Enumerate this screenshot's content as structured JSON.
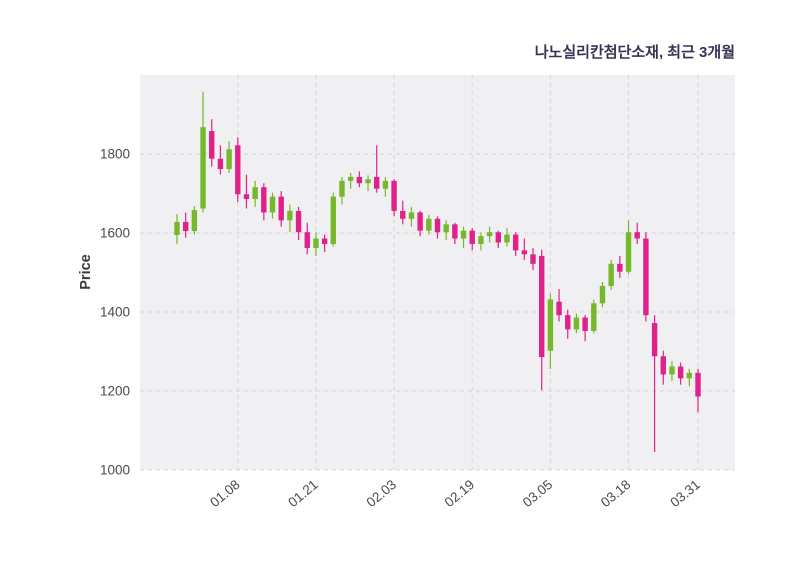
{
  "chart_data": {
    "type": "candlestick",
    "title": "나노실리칸첨단소재, 최근 3개월",
    "ylabel": "Price",
    "xlabel": "",
    "ylim": [
      1000,
      2000
    ],
    "y_ticks": [
      1000,
      1200,
      1400,
      1600,
      1800
    ],
    "x_ticks": [
      {
        "index": 7,
        "label": "01.08"
      },
      {
        "index": 16,
        "label": "01.21"
      },
      {
        "index": 25,
        "label": "02.03"
      },
      {
        "index": 34,
        "label": "02.19"
      },
      {
        "index": 43,
        "label": "03.05"
      },
      {
        "index": 52,
        "label": "03.18"
      },
      {
        "index": 60,
        "label": "03.31"
      }
    ],
    "grid": {
      "on": true,
      "style": "dashed"
    },
    "legend": "none",
    "colors": {
      "up": "#76B82A",
      "down": "#E0218A",
      "plot_bg": "#F0F0F2",
      "grid": "#D6D6DA",
      "title": "#343454",
      "tick": "#4A4A4A",
      "ylabel": "#3A3A3A",
      "figure_bg": "#FFFFFF"
    },
    "candles_format": [
      "open",
      "high",
      "low",
      "close"
    ],
    "candles": [
      [
        1595,
        1648,
        1572,
        1628
      ],
      [
        1628,
        1652,
        1588,
        1605
      ],
      [
        1605,
        1668,
        1596,
        1658
      ],
      [
        1662,
        1958,
        1652,
        1868
      ],
      [
        1858,
        1888,
        1768,
        1788
      ],
      [
        1788,
        1822,
        1748,
        1762
      ],
      [
        1762,
        1832,
        1752,
        1812
      ],
      [
        1822,
        1842,
        1678,
        1698
      ],
      [
        1698,
        1748,
        1662,
        1686
      ],
      [
        1686,
        1732,
        1666,
        1716
      ],
      [
        1716,
        1726,
        1632,
        1652
      ],
      [
        1652,
        1702,
        1636,
        1692
      ],
      [
        1692,
        1706,
        1616,
        1632
      ],
      [
        1632,
        1672,
        1602,
        1656
      ],
      [
        1656,
        1666,
        1582,
        1602
      ],
      [
        1602,
        1626,
        1546,
        1562
      ],
      [
        1562,
        1602,
        1542,
        1586
      ],
      [
        1586,
        1596,
        1552,
        1572
      ],
      [
        1572,
        1702,
        1566,
        1692
      ],
      [
        1692,
        1742,
        1672,
        1732
      ],
      [
        1732,
        1752,
        1712,
        1742
      ],
      [
        1742,
        1756,
        1716,
        1726
      ],
      [
        1726,
        1746,
        1706,
        1736
      ],
      [
        1742,
        1822,
        1702,
        1712
      ],
      [
        1712,
        1742,
        1692,
        1732
      ],
      [
        1732,
        1736,
        1642,
        1656
      ],
      [
        1656,
        1682,
        1622,
        1636
      ],
      [
        1636,
        1666,
        1616,
        1652
      ],
      [
        1652,
        1656,
        1592,
        1606
      ],
      [
        1606,
        1646,
        1596,
        1636
      ],
      [
        1636,
        1642,
        1586,
        1602
      ],
      [
        1602,
        1632,
        1582,
        1622
      ],
      [
        1622,
        1626,
        1572,
        1586
      ],
      [
        1586,
        1616,
        1562,
        1606
      ],
      [
        1606,
        1612,
        1556,
        1572
      ],
      [
        1572,
        1602,
        1556,
        1592
      ],
      [
        1592,
        1616,
        1576,
        1602
      ],
      [
        1602,
        1606,
        1562,
        1576
      ],
      [
        1576,
        1612,
        1566,
        1596
      ],
      [
        1596,
        1602,
        1542,
        1556
      ],
      [
        1556,
        1586,
        1532,
        1546
      ],
      [
        1546,
        1562,
        1506,
        1522
      ],
      [
        1542,
        1558,
        1202,
        1286
      ],
      [
        1302,
        1446,
        1256,
        1432
      ],
      [
        1426,
        1458,
        1376,
        1392
      ],
      [
        1392,
        1406,
        1332,
        1356
      ],
      [
        1356,
        1396,
        1346,
        1386
      ],
      [
        1386,
        1392,
        1326,
        1352
      ],
      [
        1352,
        1432,
        1346,
        1422
      ],
      [
        1422,
        1476,
        1412,
        1466
      ],
      [
        1466,
        1532,
        1456,
        1522
      ],
      [
        1522,
        1542,
        1486,
        1502
      ],
      [
        1502,
        1632,
        1496,
        1602
      ],
      [
        1602,
        1626,
        1572,
        1586
      ],
      [
        1586,
        1602,
        1376,
        1392
      ],
      [
        1372,
        1392,
        1046,
        1288
      ],
      [
        1288,
        1302,
        1216,
        1242
      ],
      [
        1242,
        1276,
        1226,
        1262
      ],
      [
        1262,
        1272,
        1216,
        1232
      ],
      [
        1232,
        1256,
        1212,
        1246
      ],
      [
        1246,
        1256,
        1146,
        1186
      ]
    ]
  }
}
